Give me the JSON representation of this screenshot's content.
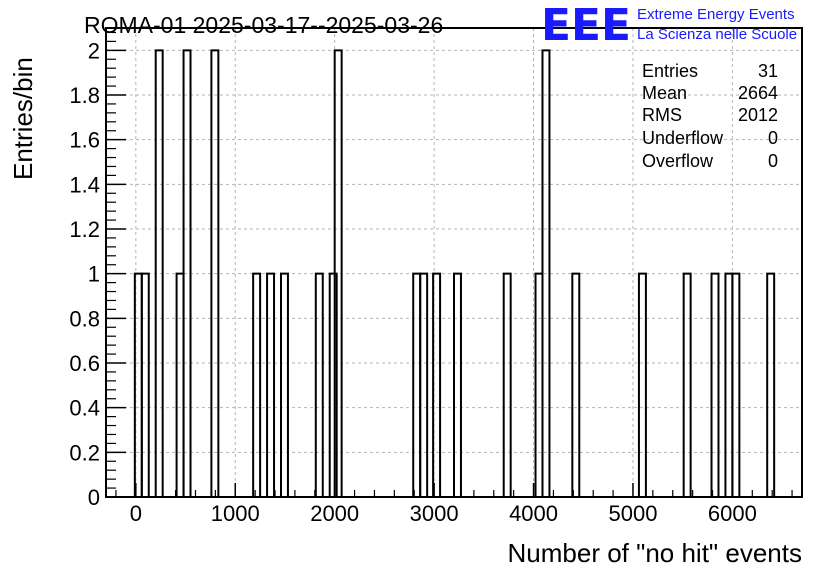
{
  "chart_data": {
    "type": "bar",
    "title": "ROMA-01 2025-03-17--2025-03-26",
    "xlabel": "Number of \"no hit\" events",
    "ylabel": "Entries/bin",
    "xlim": [
      -300,
      6700
    ],
    "ylim": [
      0,
      2.1
    ],
    "bin_width": 70,
    "x_ticks": [
      0,
      1000,
      2000,
      3000,
      4000,
      5000,
      6000
    ],
    "x_tick_labels": [
      "0",
      "1000",
      "2000",
      "3000",
      "4000",
      "5000",
      "6000"
    ],
    "y_ticks": [
      0,
      0.2,
      0.4,
      0.6,
      0.8,
      1,
      1.2,
      1.4,
      1.6,
      1.8,
      2
    ],
    "y_tick_labels": [
      "0",
      "0.2",
      "0.4",
      "0.6",
      "0.8",
      "1",
      "1.2",
      "1.4",
      "1.6",
      "1.8",
      "2"
    ],
    "grid": true,
    "bins": [
      {
        "x": -10,
        "value": 1
      },
      {
        "x": 60,
        "value": 1
      },
      {
        "x": 200,
        "value": 2
      },
      {
        "x": 410,
        "value": 1
      },
      {
        "x": 480,
        "value": 2
      },
      {
        "x": 760,
        "value": 2
      },
      {
        "x": 1180,
        "value": 1
      },
      {
        "x": 1320,
        "value": 1
      },
      {
        "x": 1460,
        "value": 1
      },
      {
        "x": 1810,
        "value": 1
      },
      {
        "x": 1950,
        "value": 1
      },
      {
        "x": 2000,
        "value": 2
      },
      {
        "x": 2790,
        "value": 1
      },
      {
        "x": 2860,
        "value": 1
      },
      {
        "x": 2990,
        "value": 1
      },
      {
        "x": 3200,
        "value": 1
      },
      {
        "x": 3700,
        "value": 1
      },
      {
        "x": 4020,
        "value": 1
      },
      {
        "x": 4090,
        "value": 2
      },
      {
        "x": 4390,
        "value": 1
      },
      {
        "x": 5060,
        "value": 1
      },
      {
        "x": 5510,
        "value": 1
      },
      {
        "x": 5790,
        "value": 1
      },
      {
        "x": 5930,
        "value": 1
      },
      {
        "x": 6000,
        "value": 1
      },
      {
        "x": 6350,
        "value": 1
      }
    ],
    "stats": [
      {
        "label": "Entries",
        "value": "31"
      },
      {
        "label": "Mean",
        "value": "2664"
      },
      {
        "label": "RMS",
        "value": "2012"
      },
      {
        "label": "Underflow",
        "value": "0"
      },
      {
        "label": "Overflow",
        "value": "0"
      }
    ]
  },
  "logo": {
    "mark": "EEE",
    "line1": "Extreme Energy Events",
    "line2": "La Scienza nelle Scuole",
    "color": "#1a1aff"
  },
  "colors": {
    "histogram": "#000000",
    "grid": "#b4b4b4",
    "axis": "#000000"
  }
}
